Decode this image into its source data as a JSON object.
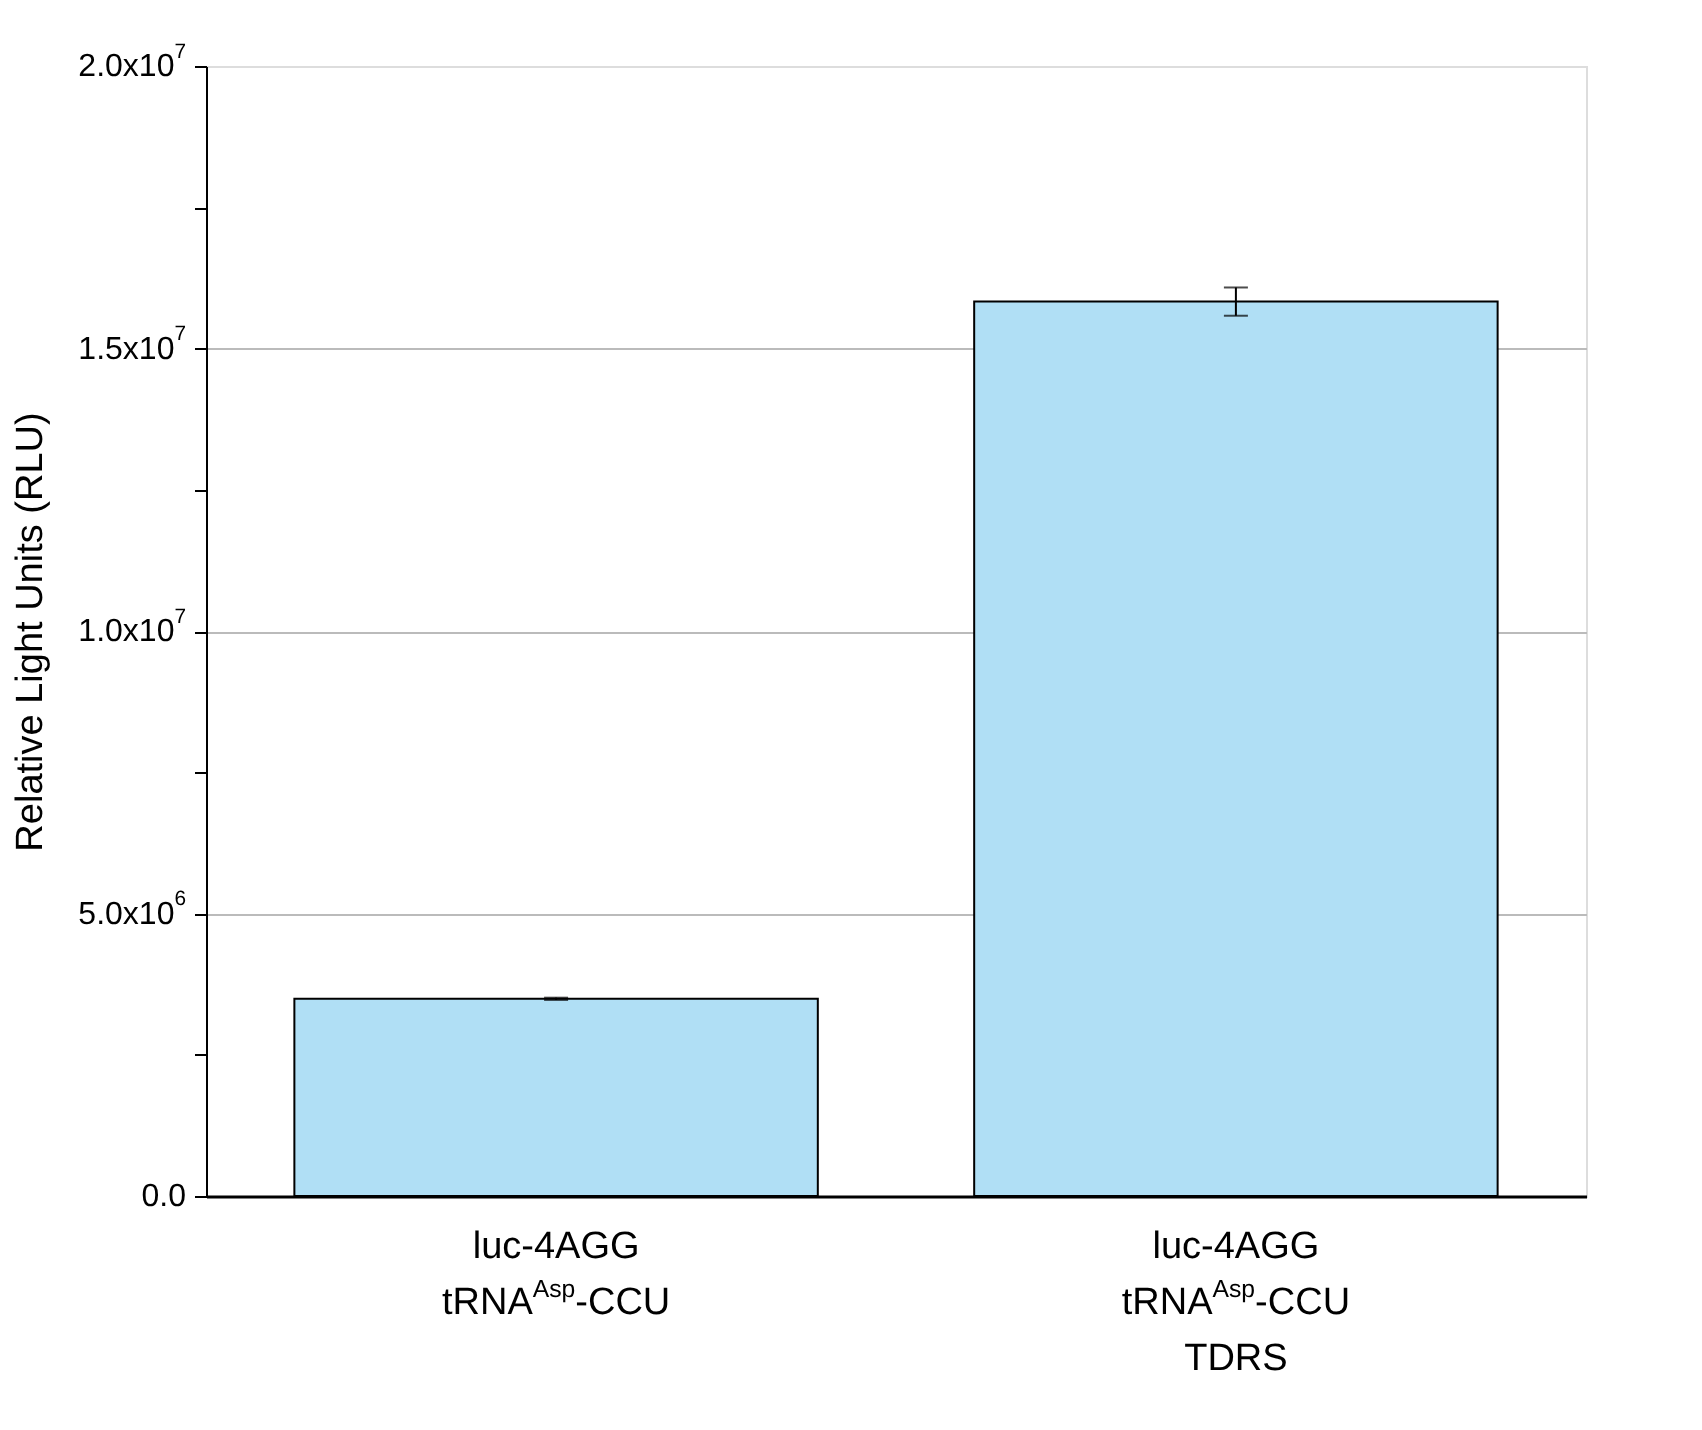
{
  "chart_data": {
    "type": "bar",
    "ylabel": "Relative Light Units (RLU)",
    "categories": [
      "luc-4AGG\ntRNA$^{Asp}$-CCU",
      "luc-4AGG\ntRNA$^{Asp}$-CCU\nTDRS"
    ],
    "values": [
      3490000,
      15830000
    ],
    "errors": [
      20000,
      250000
    ],
    "color": "#b0dff5",
    "ylim": [
      0,
      20000000
    ],
    "yticks": [
      {
        "value": 0,
        "label": "0.0"
      },
      {
        "value": 2500000,
        "label": null
      },
      {
        "value": 5000000,
        "label": "5.0x10$^{6}$"
      },
      {
        "value": 7500000,
        "label": null
      },
      {
        "value": 10000000,
        "label": "1.0x10$^{7}$"
      },
      {
        "value": 12500000,
        "label": null
      },
      {
        "value": 15000000,
        "label": "1.5x10$^{7}$"
      },
      {
        "value": 17500000,
        "label": null
      },
      {
        "value": 20000000,
        "label": "2.0x10$^{7}$"
      }
    ],
    "grid": "y"
  }
}
